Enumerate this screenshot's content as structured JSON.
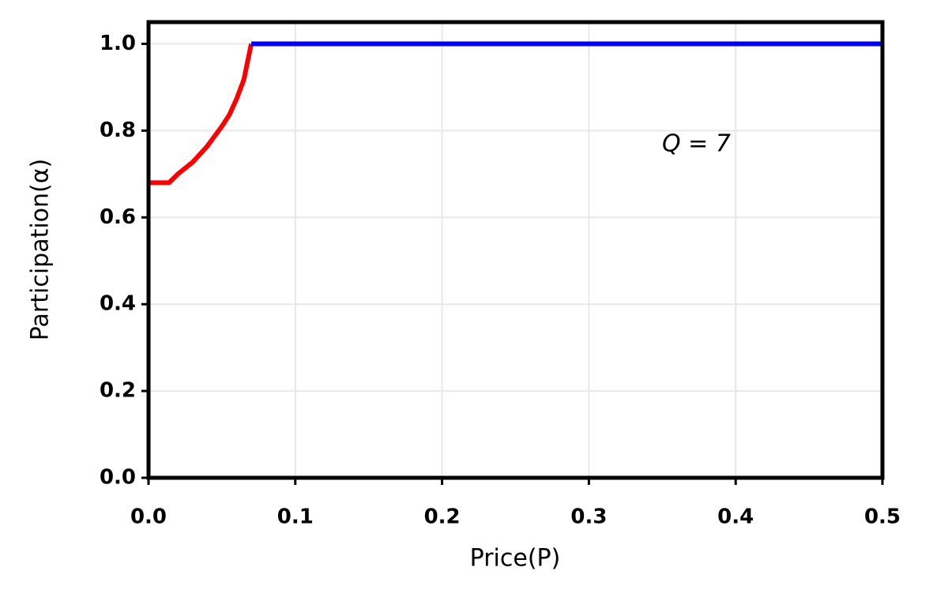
{
  "chart_data": {
    "type": "line",
    "x": [
      0,
      0.014,
      0.02,
      0.03,
      0.04,
      0.05,
      0.055,
      0.06,
      0.065,
      0.07,
      0.5
    ],
    "series": [
      {
        "color": "#ff0000",
        "values": [
          0.68,
          0.68,
          0.7,
          0.727,
          0.764,
          0.81,
          0.836,
          0.873,
          0.918,
          1.0,
          null
        ]
      },
      {
        "color": "#0000ff",
        "values": [
          null,
          null,
          null,
          null,
          null,
          null,
          null,
          null,
          null,
          1.0,
          1.0
        ]
      }
    ],
    "xlim": [
      0,
      0.5
    ],
    "ylim": [
      0,
      1.05
    ],
    "xticks": [
      {
        "value": 0,
        "label": "0.0"
      },
      0.1,
      0.2,
      0.3,
      0.4,
      0.5
    ],
    "yticks": [
      {
        "value": 0,
        "label": "0.0"
      },
      0.2,
      0.4,
      0.6,
      0.8,
      {
        "value": 1,
        "label": "1.0"
      }
    ],
    "xlabel": "Price(P)",
    "ylabel": "Participation(α)",
    "annotation": "Q = 7",
    "grid": true
  }
}
